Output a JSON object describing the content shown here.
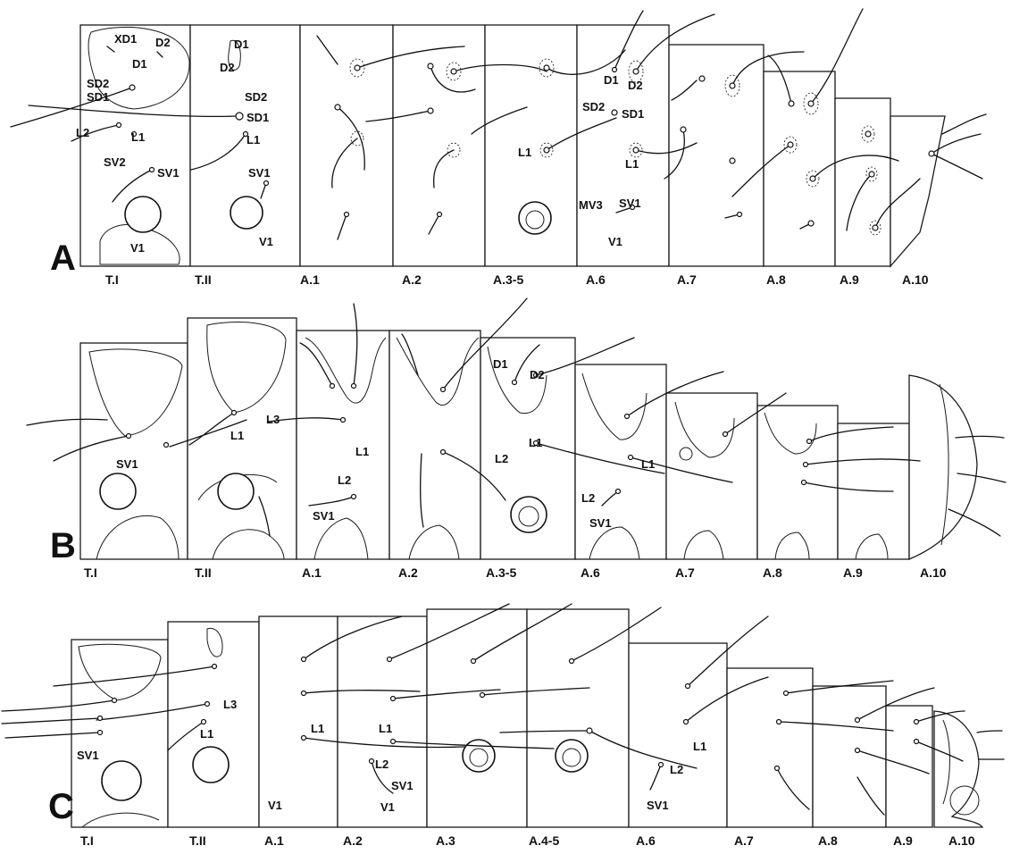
{
  "panels": [
    {
      "letter": "A",
      "segments": [
        "T.I",
        "T.II",
        "A.1",
        "A.2",
        "A.3-5",
        "A.6",
        "A.7",
        "A.8",
        "A.9",
        "A.10"
      ],
      "setae_labels": [
        "XD1",
        "D2",
        "D1",
        "SD2",
        "SD1",
        "L2",
        "L1",
        "SV2",
        "SV1",
        "V1",
        "D1",
        "D2",
        "SD2",
        "SD1",
        "L1",
        "SV1",
        "V1",
        "D1",
        "D2",
        "SD2",
        "SD1",
        "L1",
        "L1",
        "MV3",
        "SV1",
        "V1"
      ]
    },
    {
      "letter": "B",
      "segments": [
        "T.I",
        "T.II",
        "A.1",
        "A.2",
        "A.3-5",
        "A.6",
        "A.7",
        "A.8",
        "A.9",
        "A.10"
      ],
      "setae_labels": [
        "SV1",
        "L1",
        "L3",
        "L1",
        "L2",
        "SV1",
        "D1",
        "D2",
        "L1",
        "L2",
        "L1",
        "L2",
        "SV1"
      ]
    },
    {
      "letter": "C",
      "segments": [
        "T.I",
        "T.II",
        "A.1",
        "A.2",
        "A.3",
        "A.4-5",
        "A.6",
        "A.7",
        "A.8",
        "A.9",
        "A.10"
      ],
      "setae_labels": [
        "SV1",
        "L3",
        "L1",
        "V1",
        "L1",
        "L1",
        "L2",
        "SV1",
        "V1",
        "L1",
        "L2",
        "SV1"
      ]
    }
  ]
}
